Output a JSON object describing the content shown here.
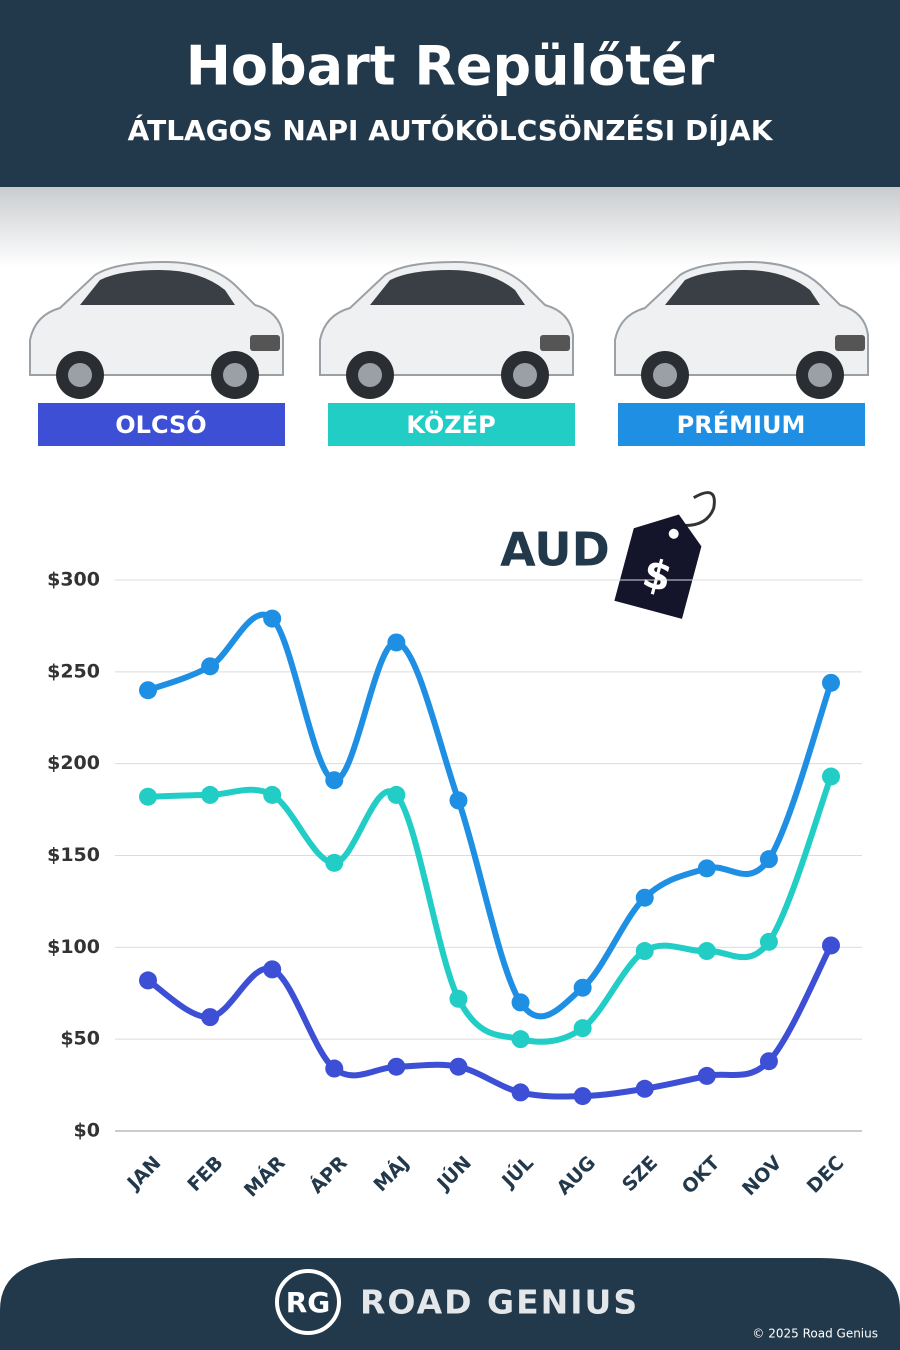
{
  "chart_data": {
    "type": "line",
    "title": "Hobart Repülőtér",
    "subtitle": "ÁTLAGOS NAPI AUTÓKÖLCSÖNZÉSI DÍJAK",
    "currency": "AUD",
    "price_tag": "$",
    "categories": [
      "JAN",
      "FEB",
      "MÁR",
      "ÁPR",
      "MÁJ",
      "JÚN",
      "JÚL",
      "AUG",
      "SZE",
      "OKT",
      "NOV",
      "DEC"
    ],
    "series": [
      {
        "name": "OLCSÓ",
        "color": "#3d4fd4",
        "values": [
          82,
          62,
          88,
          34,
          35,
          35,
          21,
          19,
          23,
          30,
          38,
          101
        ]
      },
      {
        "name": "KÖZÉP",
        "color": "#22cdc6",
        "values": [
          182,
          183,
          183,
          146,
          183,
          72,
          50,
          56,
          98,
          98,
          103,
          193
        ]
      },
      {
        "name": "PRÉMIUM",
        "color": "#1e8fe3",
        "values": [
          240,
          253,
          279,
          191,
          266,
          180,
          70,
          78,
          127,
          143,
          148,
          244
        ]
      }
    ],
    "ylim": [
      0,
      300
    ],
    "yticks": [
      {
        "value": 0,
        "label": "$0"
      },
      {
        "value": 50,
        "label": "$50"
      },
      {
        "value": 100,
        "label": "$100"
      },
      {
        "value": 150,
        "label": "$150"
      },
      {
        "value": 200,
        "label": "$200"
      },
      {
        "value": 250,
        "label": "$250"
      },
      {
        "value": 300,
        "label": "$300"
      }
    ],
    "grid": true,
    "logo": "RG",
    "brand": "ROAD GENIUS",
    "copyright": "© 2025 Road Genius"
  }
}
